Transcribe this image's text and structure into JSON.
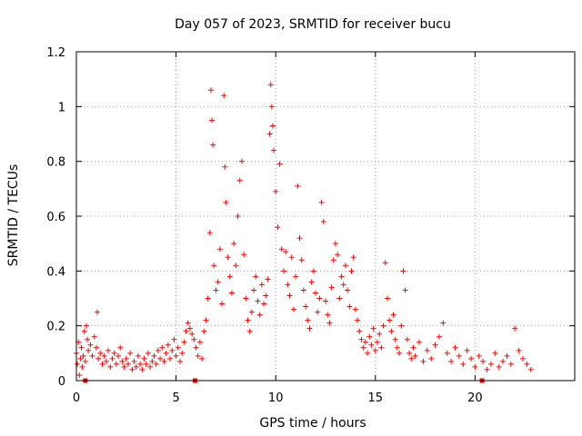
{
  "chart_data": {
    "type": "scatter",
    "title": "Day 057 of 2023, SRMTID for receiver bucu",
    "xlabel": "GPS time / hours",
    "ylabel": "SRMTID / TECUs",
    "xlim": [
      0,
      25.0
    ],
    "ylim": [
      0,
      1.2
    ],
    "xticks": [
      0,
      5,
      10,
      15,
      20
    ],
    "yticks": [
      0,
      0.2,
      0.4,
      0.6,
      0.8,
      1,
      1.2
    ],
    "xtick_labels": [
      "0",
      "5",
      "10",
      "15",
      "20"
    ],
    "ytick_labels": [
      "0",
      "0.2",
      "0.4",
      "0.6",
      "0.8",
      "1",
      "1.2"
    ],
    "grid": true,
    "marker": "+",
    "color": "#ff0000",
    "gap_markers_x": [
      0.45,
      5.95,
      20.35
    ],
    "series": [
      {
        "name": "SRMTID",
        "points": [
          [
            0.0,
            0.1
          ],
          [
            0.05,
            0.06
          ],
          [
            0.1,
            0.14
          ],
          [
            0.15,
            0.02
          ],
          [
            0.2,
            0.08
          ],
          [
            0.25,
            0.12
          ],
          [
            0.3,
            0.05
          ],
          [
            0.35,
            0.09
          ],
          [
            0.4,
            0.18
          ],
          [
            0.45,
            0.07
          ],
          [
            0.5,
            0.2
          ],
          [
            0.55,
            0.15
          ],
          [
            0.6,
            0.11
          ],
          [
            0.7,
            0.13
          ],
          [
            0.8,
            0.09
          ],
          [
            0.9,
            0.16
          ],
          [
            1.0,
            0.12
          ],
          [
            1.05,
            0.25
          ],
          [
            1.1,
            0.08
          ],
          [
            1.2,
            0.1
          ],
          [
            1.3,
            0.06
          ],
          [
            1.4,
            0.09
          ],
          [
            1.5,
            0.07
          ],
          [
            1.6,
            0.11
          ],
          [
            1.7,
            0.05
          ],
          [
            1.8,
            0.08
          ],
          [
            1.9,
            0.1
          ],
          [
            2.0,
            0.06
          ],
          [
            2.1,
            0.09
          ],
          [
            2.2,
            0.12
          ],
          [
            2.3,
            0.07
          ],
          [
            2.4,
            0.05
          ],
          [
            2.5,
            0.08
          ],
          [
            2.6,
            0.06
          ],
          [
            2.7,
            0.1
          ],
          [
            2.8,
            0.04
          ],
          [
            2.9,
            0.07
          ],
          [
            3.0,
            0.05
          ],
          [
            3.1,
            0.09
          ],
          [
            3.2,
            0.06
          ],
          [
            3.3,
            0.04
          ],
          [
            3.4,
            0.08
          ],
          [
            3.5,
            0.06
          ],
          [
            3.6,
            0.1
          ],
          [
            3.7,
            0.05
          ],
          [
            3.8,
            0.07
          ],
          [
            3.9,
            0.09
          ],
          [
            4.0,
            0.06
          ],
          [
            4.1,
            0.11
          ],
          [
            4.2,
            0.08
          ],
          [
            4.3,
            0.12
          ],
          [
            4.4,
            0.07
          ],
          [
            4.5,
            0.1
          ],
          [
            4.6,
            0.13
          ],
          [
            4.7,
            0.08
          ],
          [
            4.8,
            0.11
          ],
          [
            4.9,
            0.15
          ],
          [
            5.0,
            0.09
          ],
          [
            5.1,
            0.12
          ],
          [
            5.2,
            0.07
          ],
          [
            5.3,
            0.1
          ],
          [
            5.4,
            0.14
          ],
          [
            5.5,
            0.18
          ],
          [
            5.6,
            0.21
          ],
          [
            5.7,
            0.19
          ],
          [
            5.8,
            0.17
          ],
          [
            5.9,
            0.15
          ],
          [
            6.0,
            0.12
          ],
          [
            6.1,
            0.09
          ],
          [
            6.2,
            0.14
          ],
          [
            6.3,
            0.08
          ],
          [
            6.4,
            0.18
          ],
          [
            6.5,
            0.22
          ],
          [
            6.6,
            0.3
          ],
          [
            6.7,
            0.54
          ],
          [
            6.75,
            1.06
          ],
          [
            6.8,
            0.95
          ],
          [
            6.85,
            0.86
          ],
          [
            6.9,
            0.42
          ],
          [
            7.0,
            0.33
          ],
          [
            7.1,
            0.36
          ],
          [
            7.2,
            0.48
          ],
          [
            7.3,
            0.28
          ],
          [
            7.4,
            1.04
          ],
          [
            7.45,
            0.78
          ],
          [
            7.5,
            0.65
          ],
          [
            7.6,
            0.45
          ],
          [
            7.7,
            0.38
          ],
          [
            7.8,
            0.32
          ],
          [
            7.9,
            0.5
          ],
          [
            8.0,
            0.42
          ],
          [
            8.1,
            0.6
          ],
          [
            8.2,
            0.73
          ],
          [
            8.3,
            0.8
          ],
          [
            8.4,
            0.46
          ],
          [
            8.5,
            0.3
          ],
          [
            8.6,
            0.22
          ],
          [
            8.7,
            0.18
          ],
          [
            8.8,
            0.25
          ],
          [
            8.9,
            0.33
          ],
          [
            9.0,
            0.38
          ],
          [
            9.1,
            0.29
          ],
          [
            9.2,
            0.24
          ],
          [
            9.3,
            0.35
          ],
          [
            9.4,
            0.28
          ],
          [
            9.5,
            0.31
          ],
          [
            9.6,
            0.37
          ],
          [
            9.7,
            0.9
          ],
          [
            9.75,
            1.08
          ],
          [
            9.8,
            1.0
          ],
          [
            9.85,
            0.93
          ],
          [
            9.9,
            0.84
          ],
          [
            10.0,
            0.69
          ],
          [
            10.1,
            0.56
          ],
          [
            10.2,
            0.79
          ],
          [
            10.3,
            0.48
          ],
          [
            10.4,
            0.4
          ],
          [
            10.5,
            0.47
          ],
          [
            10.6,
            0.35
          ],
          [
            10.7,
            0.31
          ],
          [
            10.8,
            0.45
          ],
          [
            10.9,
            0.26
          ],
          [
            11.0,
            0.38
          ],
          [
            11.1,
            0.71
          ],
          [
            11.2,
            0.52
          ],
          [
            11.3,
            0.44
          ],
          [
            11.4,
            0.33
          ],
          [
            11.5,
            0.27
          ],
          [
            11.6,
            0.22
          ],
          [
            11.7,
            0.19
          ],
          [
            11.8,
            0.36
          ],
          [
            11.9,
            0.4
          ],
          [
            12.0,
            0.32
          ],
          [
            12.1,
            0.25
          ],
          [
            12.2,
            0.3
          ],
          [
            12.3,
            0.65
          ],
          [
            12.4,
            0.58
          ],
          [
            12.5,
            0.29
          ],
          [
            12.6,
            0.24
          ],
          [
            12.7,
            0.21
          ],
          [
            12.8,
            0.34
          ],
          [
            12.9,
            0.44
          ],
          [
            13.0,
            0.5
          ],
          [
            13.1,
            0.46
          ],
          [
            13.2,
            0.3
          ],
          [
            13.3,
            0.38
          ],
          [
            13.4,
            0.35
          ],
          [
            13.5,
            0.42
          ],
          [
            13.6,
            0.33
          ],
          [
            13.7,
            0.27
          ],
          [
            13.8,
            0.4
          ],
          [
            13.9,
            0.45
          ],
          [
            14.0,
            0.26
          ],
          [
            14.1,
            0.22
          ],
          [
            14.2,
            0.18
          ],
          [
            14.3,
            0.15
          ],
          [
            14.4,
            0.12
          ],
          [
            14.5,
            0.14
          ],
          [
            14.6,
            0.1
          ],
          [
            14.7,
            0.16
          ],
          [
            14.8,
            0.13
          ],
          [
            14.9,
            0.19
          ],
          [
            15.0,
            0.11
          ],
          [
            15.1,
            0.14
          ],
          [
            15.2,
            0.17
          ],
          [
            15.3,
            0.12
          ],
          [
            15.4,
            0.2
          ],
          [
            15.5,
            0.43
          ],
          [
            15.6,
            0.3
          ],
          [
            15.7,
            0.22
          ],
          [
            15.8,
            0.18
          ],
          [
            15.9,
            0.24
          ],
          [
            16.0,
            0.15
          ],
          [
            16.1,
            0.12
          ],
          [
            16.2,
            0.1
          ],
          [
            16.3,
            0.2
          ],
          [
            16.4,
            0.4
          ],
          [
            16.5,
            0.33
          ],
          [
            16.6,
            0.15
          ],
          [
            16.7,
            0.1
          ],
          [
            16.8,
            0.08
          ],
          [
            16.9,
            0.12
          ],
          [
            17.0,
            0.09
          ],
          [
            17.2,
            0.14
          ],
          [
            17.4,
            0.07
          ],
          [
            17.6,
            0.11
          ],
          [
            17.8,
            0.08
          ],
          [
            18.0,
            0.13
          ],
          [
            18.2,
            0.16
          ],
          [
            18.4,
            0.21
          ],
          [
            18.6,
            0.1
          ],
          [
            18.8,
            0.07
          ],
          [
            19.0,
            0.12
          ],
          [
            19.2,
            0.09
          ],
          [
            19.4,
            0.06
          ],
          [
            19.6,
            0.11
          ],
          [
            19.8,
            0.08
          ],
          [
            20.0,
            0.05
          ],
          [
            20.2,
            0.09
          ],
          [
            20.4,
            0.07
          ],
          [
            20.6,
            0.04
          ],
          [
            20.8,
            0.06
          ],
          [
            21.0,
            0.1
          ],
          [
            21.2,
            0.05
          ],
          [
            21.4,
            0.07
          ],
          [
            21.6,
            0.09
          ],
          [
            21.8,
            0.06
          ],
          [
            22.0,
            0.19
          ],
          [
            22.2,
            0.11
          ],
          [
            22.4,
            0.08
          ],
          [
            22.6,
            0.06
          ],
          [
            22.8,
            0.04
          ]
        ]
      }
    ]
  }
}
